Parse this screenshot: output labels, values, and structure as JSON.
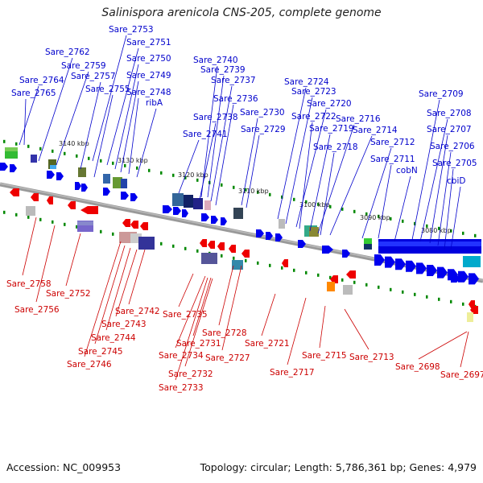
{
  "title": "Salinispora arenicola CNS-205, complete genome",
  "footer": {
    "accession": "Accession: NC_009953",
    "topology": "Topology: circular; Length: 5,786,361 bp; Genes: 4,979"
  },
  "colors": {
    "forward_gene": "#0000ee",
    "reverse_gene": "#ee0000",
    "backbone": "#888888",
    "kbp_tick": "#008800"
  },
  "scale_labels": [
    "3140 kbp",
    "3130 kbp",
    "3120 kbp",
    "3110 kbp",
    "3100 kbp",
    "3090 kbp",
    "3080 kbp"
  ],
  "top_labels": [
    "Sare_2753",
    "Sare_2751",
    "Sare_2762",
    "Sare_2750",
    "Sare_2759",
    "Sare_2764",
    "Sare_2757",
    "Sare_2749",
    "Sare_2755",
    "Sare_2765",
    "Sare_2748",
    "ribA",
    "Sare_2740",
    "Sare_2739",
    "Sare_2737",
    "Sare_2736",
    "Sare_2738",
    "Sare_2741",
    "Sare_2730",
    "Sare_2729",
    "Sare_2724",
    "Sare_2723",
    "Sare_2720",
    "Sare_2722",
    "Sare_2719",
    "Sare_2716",
    "Sare_2714",
    "Sare_2718",
    "Sare_2712",
    "Sare_2711",
    "cobN",
    "Sare_2709",
    "Sare_2708",
    "Sare_2707",
    "Sare_2706",
    "Sare_2705",
    "cbiD"
  ],
  "bottom_labels": [
    "Sare_2758",
    "Sare_2756",
    "Sare_2752",
    "Sare_2742",
    "Sare_2743",
    "Sare_2744",
    "Sare_2745",
    "Sare_2746",
    "Sare_2735",
    "Sare_2731",
    "Sare_2734",
    "Sare_2732",
    "Sare_2733",
    "Sare_2728",
    "Sare_2727",
    "Sare_2721",
    "Sare_2717",
    "Sare_2715",
    "Sare_2713",
    "Sare_2698",
    "Sare_2697"
  ]
}
